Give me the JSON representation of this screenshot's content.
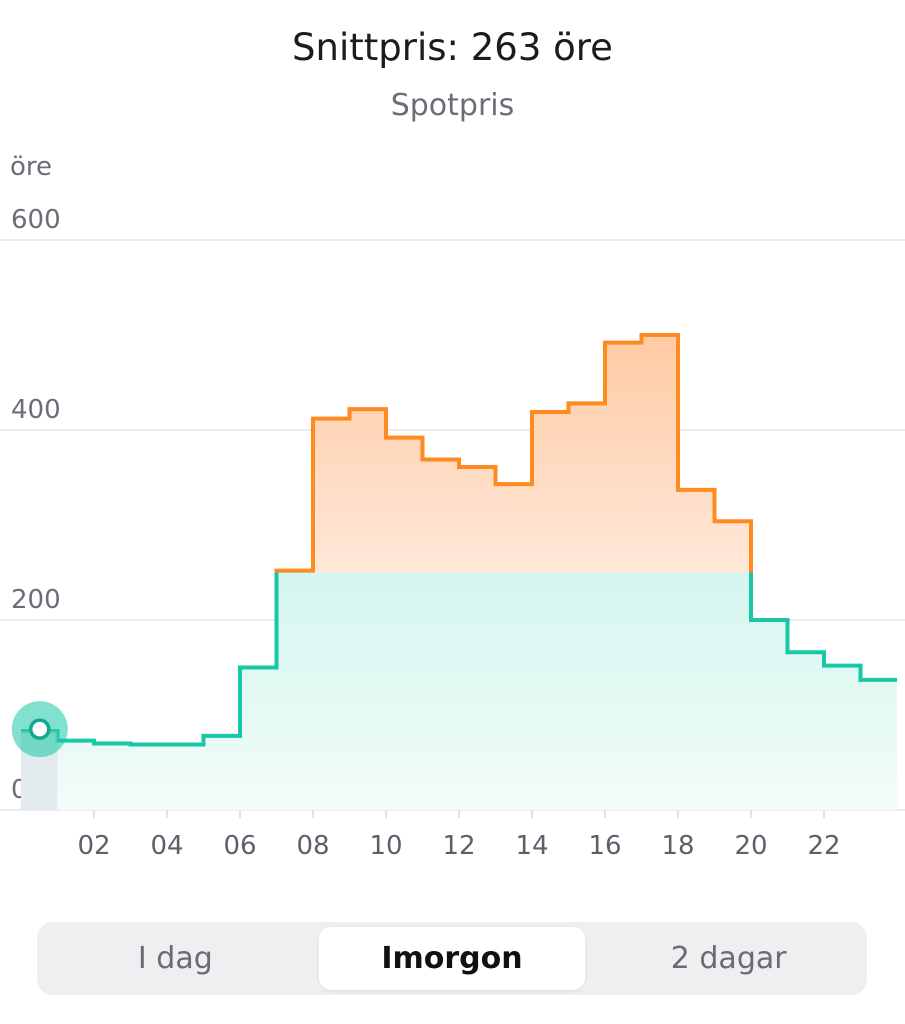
{
  "header": {
    "title": "Snittpris: 263 öre",
    "subtitle": "Spotpris"
  },
  "colors": {
    "low": "#19c7a6",
    "high": "#ff8a1f",
    "grid": "#e6e6ea",
    "current_marker": "#19c7a6"
  },
  "chart_data": {
    "type": "line",
    "step": true,
    "title": "Snittpris: 263 öre",
    "ylabel": "öre",
    "ylim": [
      0,
      600
    ],
    "yticks": [
      0,
      200,
      400,
      600
    ],
    "xticks": [
      "02",
      "04",
      "06",
      "08",
      "10",
      "12",
      "14",
      "16",
      "18",
      "20",
      "22"
    ],
    "threshold": 250,
    "current_hour": 0,
    "x": [
      0,
      1,
      2,
      3,
      4,
      5,
      6,
      7,
      8,
      9,
      10,
      11,
      12,
      13,
      14,
      15,
      16,
      17,
      18,
      19,
      20,
      21,
      22,
      23
    ],
    "values": [
      83,
      73,
      70,
      69,
      69,
      78,
      150,
      252,
      412,
      422,
      392,
      369,
      361,
      343,
      419,
      428,
      492,
      500,
      337,
      304,
      200,
      166,
      152,
      137
    ],
    "grid": true
  },
  "segmented": {
    "options": [
      "I dag",
      "Imorgon",
      "2 dagar"
    ],
    "selected": 1
  }
}
